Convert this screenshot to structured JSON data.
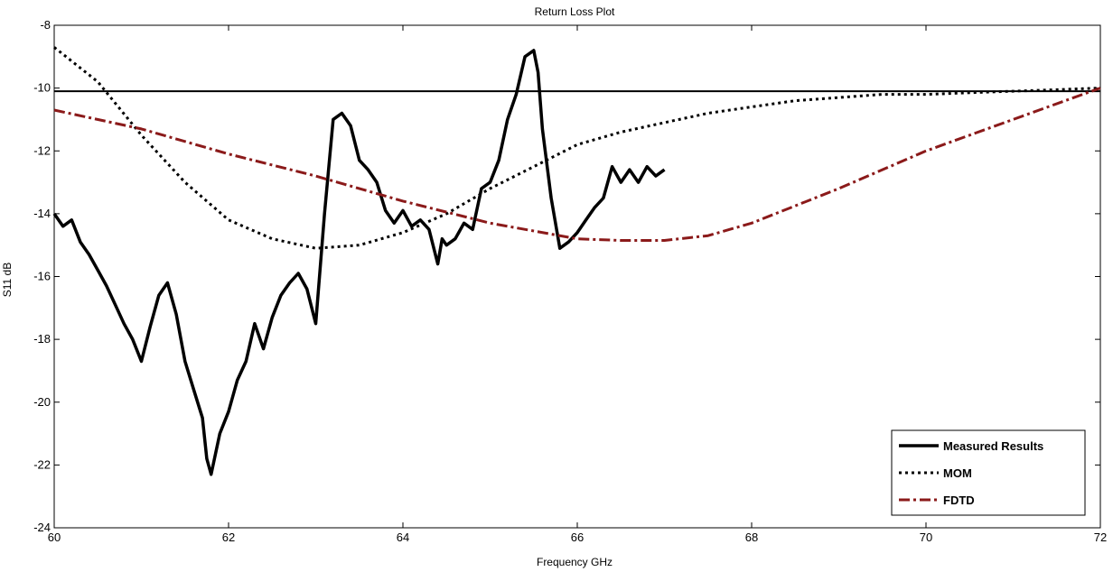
{
  "chart_data": {
    "type": "line",
    "title": "Return Loss Plot",
    "xlabel": "Frequency GHz",
    "ylabel": "S11 dB",
    "xlim": [
      60,
      72
    ],
    "ylim": [
      -24,
      -8
    ],
    "xticks": [
      60,
      62,
      64,
      66,
      68,
      70,
      72
    ],
    "yticks": [
      -24,
      -22,
      -20,
      -18,
      -16,
      -14,
      -12,
      -10,
      -8
    ],
    "grid": false,
    "legend_position": "bottom-right",
    "reference_line": {
      "y": -10.1,
      "color": "#000000"
    },
    "series": [
      {
        "name": "Measured Results",
        "color": "#000000",
        "style": "solid",
        "x": [
          60.0,
          60.1,
          60.2,
          60.3,
          60.4,
          60.5,
          60.6,
          60.7,
          60.8,
          60.9,
          61.0,
          61.1,
          61.2,
          61.3,
          61.4,
          61.5,
          61.6,
          61.7,
          61.75,
          61.8,
          61.9,
          62.0,
          62.1,
          62.2,
          62.3,
          62.4,
          62.5,
          62.6,
          62.7,
          62.8,
          62.9,
          63.0,
          63.1,
          63.2,
          63.3,
          63.4,
          63.5,
          63.6,
          63.7,
          63.8,
          63.9,
          64.0,
          64.1,
          64.2,
          64.3,
          64.4,
          64.45,
          64.5,
          64.6,
          64.7,
          64.8,
          64.9,
          65.0,
          65.1,
          65.2,
          65.3,
          65.4,
          65.5,
          65.55,
          65.6,
          65.7,
          65.8,
          65.9,
          66.0,
          66.1,
          66.2,
          66.3,
          66.4,
          66.5,
          66.6,
          66.7,
          66.8,
          66.9,
          67.0
        ],
        "y": [
          -14.0,
          -14.4,
          -14.2,
          -14.9,
          -15.3,
          -15.8,
          -16.3,
          -16.9,
          -17.5,
          -18.0,
          -18.7,
          -17.6,
          -16.6,
          -16.2,
          -17.2,
          -18.7,
          -19.6,
          -20.5,
          -21.8,
          -22.3,
          -21.0,
          -20.3,
          -19.3,
          -18.7,
          -17.5,
          -18.3,
          -17.3,
          -16.6,
          -16.2,
          -15.9,
          -16.4,
          -17.5,
          -14.0,
          -11.0,
          -10.8,
          -11.2,
          -12.3,
          -12.6,
          -13.0,
          -13.9,
          -14.3,
          -13.9,
          -14.4,
          -14.2,
          -14.5,
          -15.6,
          -14.8,
          -15.0,
          -14.8,
          -14.3,
          -14.5,
          -13.2,
          -13.0,
          -12.3,
          -11.0,
          -10.2,
          -9.0,
          -8.8,
          -9.5,
          -11.3,
          -13.5,
          -15.1,
          -14.9,
          -14.6,
          -14.2,
          -13.8,
          -13.5,
          -12.5,
          -13.0,
          -12.6,
          -13.0,
          -12.5,
          -12.8,
          -12.6
        ]
      },
      {
        "name": "MOM",
        "color": "#000000",
        "style": "dotted",
        "x": [
          60.0,
          60.5,
          61.0,
          61.5,
          62.0,
          62.5,
          63.0,
          63.5,
          64.0,
          64.5,
          65.0,
          65.5,
          66.0,
          66.5,
          67.0,
          67.5,
          68.0,
          68.5,
          69.0,
          69.5,
          70.0,
          70.5,
          71.0,
          71.5,
          72.0
        ],
        "y": [
          -8.7,
          -9.8,
          -11.5,
          -13.0,
          -14.2,
          -14.8,
          -15.1,
          -15.0,
          -14.6,
          -14.0,
          -13.2,
          -12.5,
          -11.8,
          -11.4,
          -11.1,
          -10.8,
          -10.6,
          -10.4,
          -10.3,
          -10.2,
          -10.2,
          -10.15,
          -10.1,
          -10.05,
          -10.0
        ]
      },
      {
        "name": "FDTD",
        "color": "#8b1a1a",
        "style": "dashdot",
        "x": [
          60.0,
          61.0,
          62.0,
          63.0,
          64.0,
          65.0,
          66.0,
          66.5,
          67.0,
          67.5,
          68.0,
          69.0,
          70.0,
          71.0,
          72.0
        ],
        "y": [
          -10.7,
          -11.3,
          -12.1,
          -12.8,
          -13.6,
          -14.3,
          -14.8,
          -14.85,
          -14.85,
          -14.7,
          -14.3,
          -13.2,
          -12.0,
          -11.0,
          -10.0
        ]
      }
    ]
  }
}
